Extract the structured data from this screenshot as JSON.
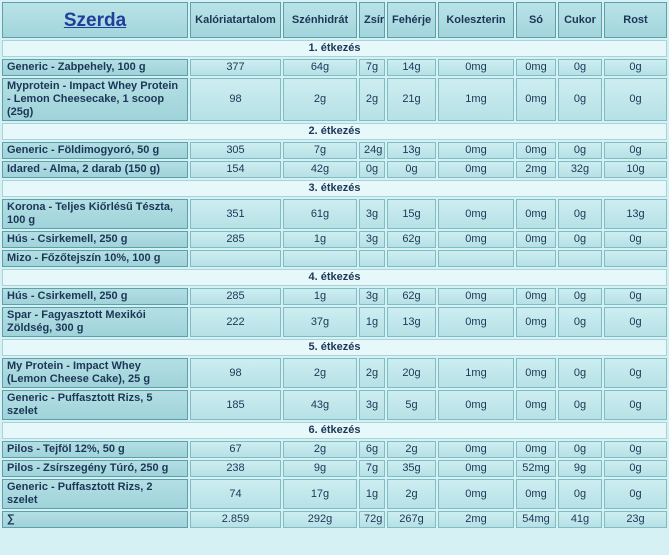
{
  "header": {
    "title": "Szerda",
    "columns": [
      "Kalóriatartalom",
      "Szénhidrát",
      "Zsír",
      "Fehérje",
      "Koleszterin",
      "Só",
      "Cukor",
      "Rost"
    ]
  },
  "sections": [
    {
      "title": "1. étkezés",
      "rows": [
        {
          "name": "Generic - Zabpehely, 100 g",
          "values": [
            "377",
            "64g",
            "7g",
            "14g",
            "0mg",
            "0mg",
            "0g",
            "0g"
          ]
        },
        {
          "name": "Myprotein - Impact Whey Protein - Lemon Cheesecake, 1 scoop (25g)",
          "values": [
            "98",
            "2g",
            "2g",
            "21g",
            "1mg",
            "0mg",
            "0g",
            "0g"
          ]
        }
      ]
    },
    {
      "title": "2. étkezés",
      "rows": [
        {
          "name": "Generic - Földimogyoró, 50 g",
          "values": [
            "305",
            "7g",
            "24g",
            "13g",
            "0mg",
            "0mg",
            "0g",
            "0g"
          ]
        },
        {
          "name": "Idared - Alma, 2 darab (150 g)",
          "values": [
            "154",
            "42g",
            "0g",
            "0g",
            "0mg",
            "2mg",
            "32g",
            "10g"
          ]
        }
      ]
    },
    {
      "title": "3. étkezés",
      "rows": [
        {
          "name": "Korona - Teljes Kiőrlésű Tészta, 100 g",
          "values": [
            "351",
            "61g",
            "3g",
            "15g",
            "0mg",
            "0mg",
            "0g",
            "13g"
          ]
        },
        {
          "name": "Hús - Csirkemell, 250 g",
          "values": [
            "285",
            "1g",
            "3g",
            "62g",
            "0mg",
            "0mg",
            "0g",
            "0g"
          ]
        },
        {
          "name": "Mizo - Főzőtejszín 10%, 100 g"
        }
      ]
    },
    {
      "title": "4. étkezés",
      "rows": [
        {
          "name": "Hús - Csirkemell, 250 g",
          "values": [
            "285",
            "1g",
            "3g",
            "62g",
            "0mg",
            "0mg",
            "0g",
            "0g"
          ]
        },
        {
          "name": "Spar - Fagyasztott Mexikói Zöldség, 300 g",
          "values": [
            "222",
            "37g",
            "1g",
            "13g",
            "0mg",
            "0mg",
            "0g",
            "0g"
          ]
        }
      ]
    },
    {
      "title": "5. étkezés",
      "rows": [
        {
          "name": "My Protein - Impact Whey (Lemon Cheese Cake), 25 g",
          "values": [
            "98",
            "2g",
            "2g",
            "20g",
            "1mg",
            "0mg",
            "0g",
            "0g"
          ]
        },
        {
          "name": "Generic - Puffasztott Rizs, 5 szelet",
          "values": [
            "185",
            "43g",
            "3g",
            "5g",
            "0mg",
            "0mg",
            "0g",
            "0g"
          ]
        }
      ]
    },
    {
      "title": "6. étkezés",
      "rows": [
        {
          "name": "Pilos - Tejföl 12%, 50 g",
          "values": [
            "67",
            "2g",
            "6g",
            "2g",
            "0mg",
            "0mg",
            "0g",
            "0g"
          ]
        },
        {
          "name": "Pilos - Zsírszegény Túró, 250 g",
          "values": [
            "238",
            "9g",
            "7g",
            "35g",
            "0mg",
            "52mg",
            "9g",
            "0g"
          ]
        },
        {
          "name": "Generic - Puffasztott Rizs, 2 szelet",
          "values": [
            "74",
            "17g",
            "1g",
            "2g",
            "0mg",
            "0mg",
            "0g",
            "0g"
          ]
        }
      ]
    }
  ],
  "total": {
    "symbol": "∑",
    "values": [
      "2.859",
      "292g",
      "72g",
      "267g",
      "2mg",
      "54mg",
      "41g",
      "23g"
    ]
  }
}
